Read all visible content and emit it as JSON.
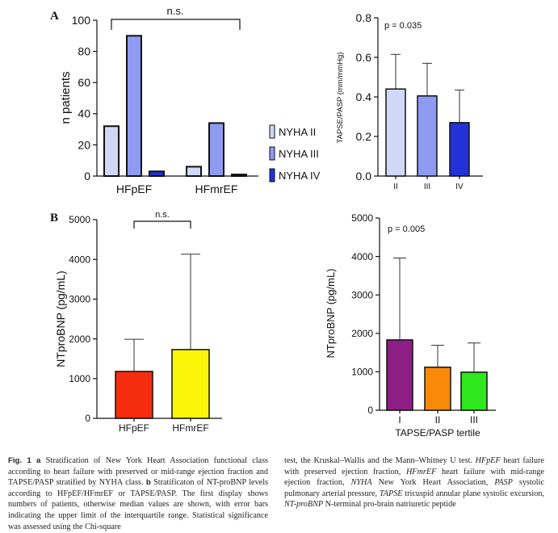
{
  "panel_labels": {
    "a": "A",
    "b": "B"
  },
  "chart_data": [
    {
      "id": "A-left",
      "type": "bar",
      "ylabel": "n patients",
      "ylim": [
        0,
        100
      ],
      "yticks": [
        0,
        20,
        40,
        60,
        80,
        100
      ],
      "categories": [
        "HFpEF",
        "HFmrEF"
      ],
      "series": [
        {
          "name": "NYHA II",
          "color": "#cfd8f5",
          "values": [
            32,
            6
          ]
        },
        {
          "name": "NYHA III",
          "color": "#8e9bf0",
          "values": [
            90,
            34
          ]
        },
        {
          "name": "NYHA IV",
          "color": "#2232d6",
          "values": [
            3,
            1
          ]
        }
      ],
      "legend": "right",
      "annotation": "n.s."
    },
    {
      "id": "A-right",
      "type": "bar",
      "ylabel": "TAPSE/PASP (mm/mmHg)",
      "ylim": [
        0,
        0.8
      ],
      "yticks": [
        "0.0",
        "0.2",
        "0.4",
        "0.6",
        "0.8"
      ],
      "categories": [
        "II",
        "III",
        "IV"
      ],
      "colors": [
        "#cfd8f5",
        "#8e9bf0",
        "#2232d6"
      ],
      "values": [
        0.44,
        0.405,
        0.27
      ],
      "error_upper": [
        0.615,
        0.57,
        0.435
      ],
      "annotation": "p = 0.035"
    },
    {
      "id": "B-left",
      "type": "bar",
      "ylabel": "NTproBNP (pg/mL)",
      "ylim": [
        0,
        5000
      ],
      "yticks": [
        0,
        1000,
        2000,
        3000,
        4000,
        5000
      ],
      "categories": [
        "HFpEF",
        "HFmrEF"
      ],
      "colors": [
        "#f62c0f",
        "#fbf50a"
      ],
      "values": [
        1180,
        1730
      ],
      "error_upper": [
        1990,
        4130
      ],
      "annotation": "n.s."
    },
    {
      "id": "B-right",
      "type": "bar",
      "ylabel": "NTproBNP (pg/mL)",
      "xlabel": "TAPSE/PASP tertile",
      "ylim": [
        0,
        5000
      ],
      "yticks": [
        0,
        1000,
        2000,
        3000,
        4000,
        5000
      ],
      "categories": [
        "I",
        "II",
        "III"
      ],
      "colors": [
        "#8e1e86",
        "#f98a09",
        "#2ee81d"
      ],
      "values": [
        1830,
        1120,
        990
      ],
      "error_upper": [
        3960,
        1690,
        1750
      ],
      "annotation": "p = 0.005"
    }
  ],
  "caption": {
    "fig_label": "Fig. 1",
    "a": "a",
    "b": "b",
    "col1": [
      "Stratification of New York Heart Association functional class according to heart failure with preserved or mid-range ejection fraction and TAPSE/PASP stratified by NYHA class.",
      "Stratificaton of NT-proBNP levels according to HFpEF/HFmrEF or TAPSE/PASP. The first display shows numbers of patients, otherwise median values are shown, with error bars indicating the upper limit of the interquartile range. Statistical significance was assessed using the Chi-square"
    ],
    "col2_intro": "test, the Kruskal–Wallis and the Mann–Whitney U test.",
    "abbreviations": [
      {
        "term": "HFpEF",
        "def": "heart failure with preserved ejection fraction,"
      },
      {
        "term": "HFmrEF",
        "def": "heart failure with mid-range ejection fraction,"
      },
      {
        "term": "NYHA",
        "def": "New York Heart Association,"
      },
      {
        "term": "PASP",
        "def": "systolic pulmonary arterial pressure,"
      },
      {
        "term": "TAPSE",
        "def": "tricuspid annular plane systolic excursion,"
      },
      {
        "term": "NT-proBNP",
        "def": "N-terminal pro-brain natriuretic peptide"
      }
    ]
  }
}
